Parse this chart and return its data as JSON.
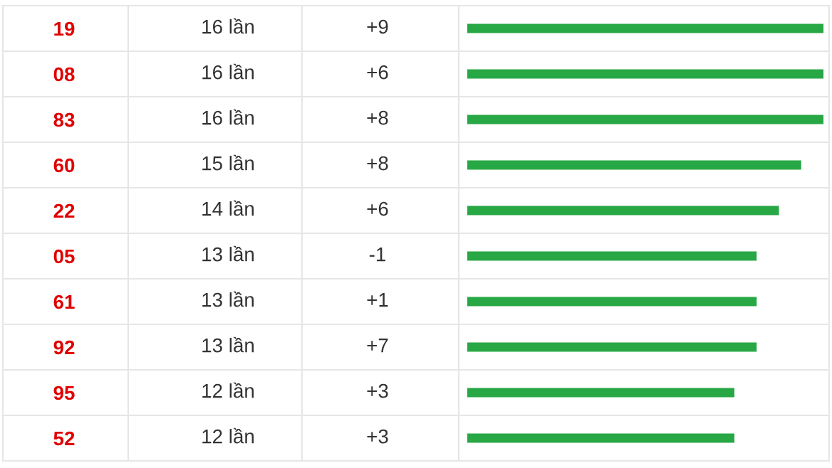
{
  "chart_data": {
    "type": "bar",
    "orientation": "horizontal",
    "categories": [
      "19",
      "08",
      "83",
      "60",
      "22",
      "05",
      "61",
      "92",
      "95",
      "52"
    ],
    "values": [
      16,
      16,
      16,
      15,
      14,
      13,
      13,
      13,
      12,
      12
    ],
    "value_labels": [
      "16 lần",
      "16 lần",
      "16 lần",
      "15 lần",
      "14 lần",
      "13 lần",
      "13 lần",
      "13 lần",
      "12 lần",
      "12 lần"
    ],
    "color": "#28a745",
    "annotations": [
      "+9",
      "+6",
      "+8",
      "+8",
      "+6",
      "-1",
      "+1",
      "+7",
      "+3",
      "+3"
    ],
    "grid": false,
    "legend": false
  }
}
